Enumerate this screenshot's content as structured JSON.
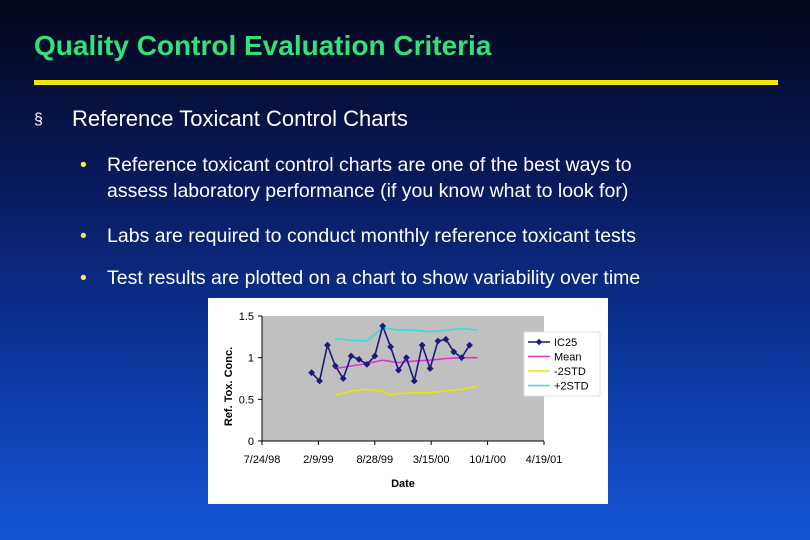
{
  "slide": {
    "title": "Quality Control Evaluation Criteria",
    "bullet1_marker": "§",
    "bullet1": "Reference Toxicant Control Charts",
    "sub_marker": "•",
    "sub1_line1": "Reference toxicant control charts are one of the best ways to",
    "sub1_line2": "assess laboratory performance (if you know what to look for)",
    "sub2": "Labs are required to conduct monthly reference toxicant tests",
    "sub3": "Test results are plotted on a chart to show variability over time"
  },
  "colors": {
    "title": "#33e07a",
    "rule": "#f2e600",
    "ic25": "#1a1a80",
    "mean": "#e233cf",
    "minus2std": "#e8e800",
    "plus2std": "#33dede",
    "plot_bg": "#c0c0c0"
  },
  "chart_data": {
    "type": "line",
    "title": "",
    "xlabel": "Date",
    "ylabel": "Ref. Tox. Conc.",
    "xlim": [
      "1998-07-24",
      "2001-04-19"
    ],
    "ylim": [
      0,
      1.5
    ],
    "x_ticks": [
      "7/24/98",
      "2/9/99",
      "8/28/99",
      "3/15/00",
      "10/1/00",
      "4/19/01"
    ],
    "y_ticks": [
      "0",
      "0.5",
      "1",
      "1.5"
    ],
    "grid": false,
    "legend": "right",
    "series": [
      {
        "name": "IC25",
        "marker": "diamond",
        "x": [
          "1999-01-16",
          "1999-02-13",
          "1999-03-13",
          "1999-04-10",
          "1999-05-08",
          "1999-06-05",
          "1999-07-03",
          "1999-07-31",
          "1999-08-28",
          "1999-09-25",
          "1999-10-23",
          "1999-11-20",
          "1999-12-18",
          "2000-01-15",
          "2000-02-12",
          "2000-03-11",
          "2000-04-08",
          "2000-05-06",
          "2000-06-03",
          "2000-07-01",
          "2000-07-29",
          "2000-08-26"
        ],
        "values": [
          0.82,
          0.72,
          1.15,
          0.9,
          0.75,
          1.02,
          0.98,
          0.92,
          1.02,
          1.38,
          1.13,
          0.85,
          1.0,
          0.72,
          1.15,
          0.87,
          1.2,
          1.22,
          1.07,
          1.0,
          1.15,
          null
        ]
      },
      {
        "name": "Mean",
        "x": [
          "1999-04-10",
          "1999-06-05",
          "1999-07-31",
          "1999-09-25",
          "1999-11-20",
          "2000-01-15",
          "2000-03-11",
          "2000-05-06",
          "2000-07-01",
          "2000-08-26"
        ],
        "values": [
          0.87,
          0.9,
          0.93,
          0.97,
          0.94,
          0.96,
          0.97,
          0.99,
          1.0,
          1.0
        ]
      },
      {
        "name": "-2STD",
        "x": [
          "1999-04-10",
          "1999-06-05",
          "1999-07-31",
          "1999-09-25",
          "1999-10-23",
          "1999-11-20",
          "2000-01-15",
          "2000-03-11",
          "2000-05-06",
          "2000-07-01",
          "2000-08-26"
        ],
        "values": [
          0.55,
          0.6,
          0.62,
          0.6,
          0.55,
          0.57,
          0.58,
          0.58,
          0.6,
          0.62,
          0.66
        ]
      },
      {
        "name": "+2STD",
        "x": [
          "1999-04-10",
          "1999-06-05",
          "1999-07-31",
          "1999-09-25",
          "1999-11-20",
          "2000-01-15",
          "2000-03-11",
          "2000-05-06",
          "2000-07-01",
          "2000-08-26"
        ],
        "values": [
          1.23,
          1.21,
          1.2,
          1.36,
          1.33,
          1.33,
          1.31,
          1.33,
          1.35,
          1.33
        ]
      }
    ]
  }
}
